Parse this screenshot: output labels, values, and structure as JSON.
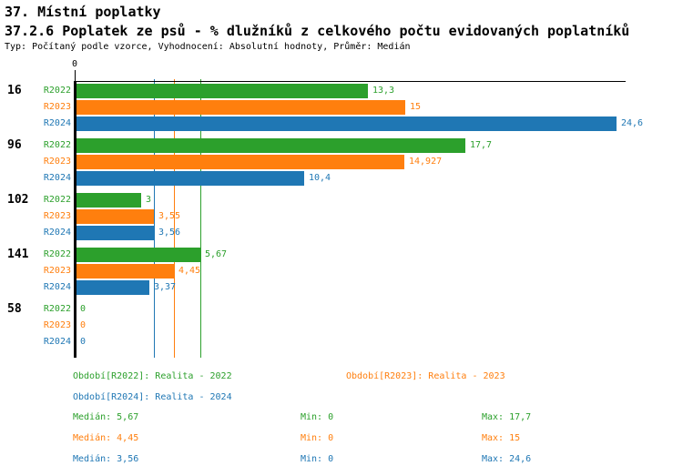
{
  "header": {
    "title": "37. Místní poplatky",
    "subtitle": "37.2.6 Poplatek ze psů - % dlužníků z celkového počtu evidovaných poplatníků",
    "meta": "Typ: Počítaný podle vzorce, Vyhodnocení: Absolutní hodnoty, Průměr: Medián"
  },
  "chart_data": {
    "type": "bar",
    "orientation": "horizontal",
    "title": "37.2.6 Poplatek ze psů - % dlužníků z celkového počtu evidovaných poplatníků",
    "axis": {
      "origin_label": "0",
      "xlim": [
        0,
        25
      ],
      "grid": false
    },
    "categories": [
      "16",
      "96",
      "102",
      "141",
      "58"
    ],
    "series": [
      {
        "name": "R2022",
        "color": "#2CA02C",
        "values": [
          13.3,
          17.7,
          3,
          5.67,
          0
        ],
        "labels": [
          "13,3",
          "17,7",
          "3",
          "5,67",
          "0"
        ]
      },
      {
        "name": "R2023",
        "color": "#FF7F0E",
        "values": [
          15,
          14.927,
          3.55,
          4.45,
          0
        ],
        "labels": [
          "15",
          "14,927",
          "3,55",
          "4,45",
          "0"
        ]
      },
      {
        "name": "R2024",
        "color": "#1F77B4",
        "values": [
          24.6,
          10.4,
          3.56,
          3.37,
          0
        ],
        "labels": [
          "24,6",
          "10,4",
          "3,56",
          "3,37",
          "0"
        ]
      }
    ],
    "median_lines": [
      {
        "series": "R2024",
        "value": 3.56,
        "color": "#1F77B4"
      },
      {
        "series": "R2023",
        "value": 4.45,
        "color": "#FF7F0E"
      },
      {
        "series": "R2022",
        "value": 5.67,
        "color": "#2CA02C"
      }
    ],
    "legend_position": "bottom"
  },
  "legend": [
    {
      "label": "Období[R2022]: Realita - 2022",
      "color": "#2CA02C",
      "row": 0,
      "col": 0
    },
    {
      "label": "Období[R2023]: Realita - 2023",
      "color": "#FF7F0E",
      "row": 0,
      "col": 1
    },
    {
      "label": "Období[R2024]: Realita - 2024",
      "color": "#1F77B4",
      "row": 1,
      "col": 0
    }
  ],
  "stats": [
    {
      "color": "#2CA02C",
      "median": "Medián: 5,67",
      "min": "Min: 0",
      "max": "Max: 17,7"
    },
    {
      "color": "#FF7F0E",
      "median": "Medián: 4,45",
      "min": "Min: 0",
      "max": "Max: 15"
    },
    {
      "color": "#1F77B4",
      "median": "Medián: 3,56",
      "min": "Min: 0",
      "max": "Max: 24,6"
    }
  ],
  "colors": {
    "green": "#2CA02C",
    "orange": "#FF7F0E",
    "blue": "#1F77B4",
    "axis": "#000000",
    "background": "#FFFFFF"
  }
}
